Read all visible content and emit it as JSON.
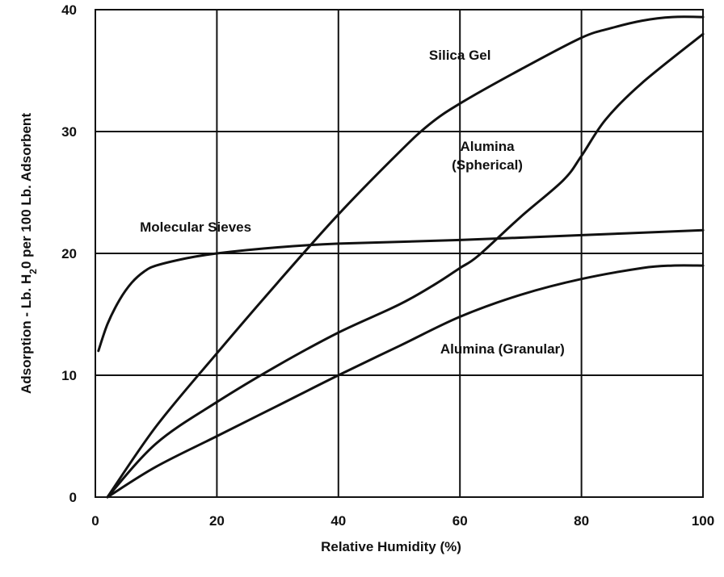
{
  "chart_data": {
    "type": "line",
    "title": "",
    "xlabel": "Relative Humidity (%)",
    "ylabel_parts": [
      "Adsorption - Lb. H",
      "2",
      "0 per 100 Lb. Adsorbent"
    ],
    "xlim": [
      0,
      100
    ],
    "ylim": [
      0,
      40
    ],
    "x_ticks": [
      0,
      20,
      40,
      60,
      80,
      100
    ],
    "y_ticks": [
      0,
      10,
      20,
      30,
      40
    ],
    "x_tick_labels": [
      "0",
      "20",
      "40",
      "60",
      "80",
      "100"
    ],
    "y_tick_labels": [
      "0",
      "10",
      "20",
      "30",
      "40"
    ],
    "grid": true,
    "line_color": "#111111",
    "series": [
      {
        "name": "Silica Gel",
        "points": [
          [
            2,
            0
          ],
          [
            10,
            5.8
          ],
          [
            20,
            11.8
          ],
          [
            30,
            17.6
          ],
          [
            40,
            23.2
          ],
          [
            50,
            28.3
          ],
          [
            55,
            30.6
          ],
          [
            60,
            32.3
          ],
          [
            70,
            35.1
          ],
          [
            80,
            37.7
          ],
          [
            85,
            38.5
          ],
          [
            90,
            39.1
          ],
          [
            95,
            39.4
          ],
          [
            100,
            39.4
          ]
        ]
      },
      {
        "name": "Molecular Sieves",
        "points": [
          [
            0.5,
            12
          ],
          [
            2,
            14.2
          ],
          [
            4,
            16.2
          ],
          [
            6,
            17.6
          ],
          [
            8,
            18.5
          ],
          [
            10,
            19
          ],
          [
            15,
            19.6
          ],
          [
            20,
            20
          ],
          [
            30,
            20.5
          ],
          [
            40,
            20.8
          ],
          [
            60,
            21.1
          ],
          [
            80,
            21.5
          ],
          [
            100,
            21.9
          ]
        ]
      },
      {
        "name": "Alumina (Spherical)",
        "points": [
          [
            2,
            0
          ],
          [
            10,
            4.4
          ],
          [
            20,
            7.8
          ],
          [
            30,
            10.8
          ],
          [
            40,
            13.5
          ],
          [
            50,
            15.8
          ],
          [
            56,
            17.5
          ],
          [
            60,
            18.8
          ],
          [
            63,
            19.8
          ],
          [
            70,
            23
          ],
          [
            77,
            26
          ],
          [
            80,
            28
          ],
          [
            84,
            31
          ],
          [
            90,
            34
          ],
          [
            100,
            38
          ]
        ]
      },
      {
        "name": "Alumina (Granular)",
        "points": [
          [
            2,
            0
          ],
          [
            10,
            2.5
          ],
          [
            20,
            5
          ],
          [
            30,
            7.5
          ],
          [
            40,
            10
          ],
          [
            50,
            12.4
          ],
          [
            60,
            14.8
          ],
          [
            70,
            16.6
          ],
          [
            80,
            17.9
          ],
          [
            90,
            18.8
          ],
          [
            95,
            19
          ],
          [
            100,
            19
          ]
        ]
      }
    ],
    "annotations": [
      {
        "text": "Silica Gel",
        "x": 60,
        "y": 35.9
      },
      {
        "text": "Alumina",
        "x": 64.5,
        "y": 28.4
      },
      {
        "text": "(Spherical)",
        "x": 64.5,
        "y": 26.9
      },
      {
        "text": "Molecular Sieves",
        "x": 16.5,
        "y": 21.8
      },
      {
        "text": "Alumina (Granular)",
        "x": 67,
        "y": 11.8
      }
    ]
  }
}
